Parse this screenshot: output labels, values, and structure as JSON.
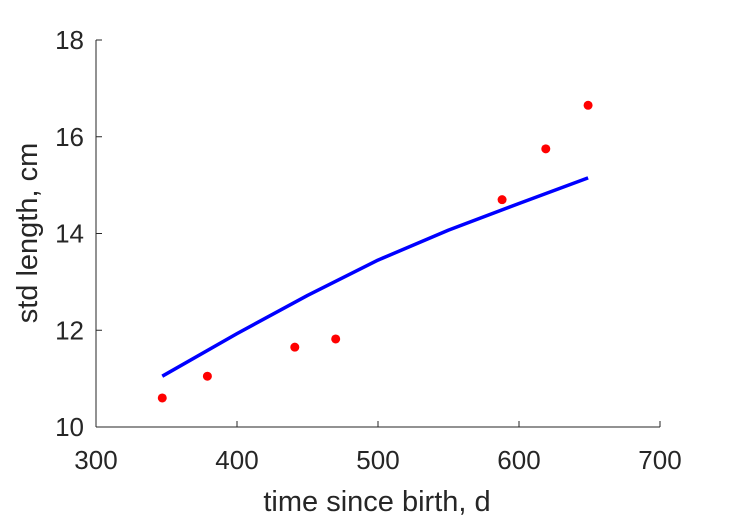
{
  "chart_data": {
    "type": "scatter",
    "title": "",
    "xlabel": "time since birth, d",
    "ylabel": "std length, cm",
    "xlim": [
      300,
      700
    ],
    "ylim": [
      10,
      18
    ],
    "xticks": [
      300,
      400,
      500,
      600,
      700
    ],
    "yticks": [
      10,
      12,
      14,
      16,
      18
    ],
    "grid": false,
    "series": [
      {
        "kind": "scatter",
        "color": "#ff0000",
        "points": [
          {
            "x": 347,
            "y": 10.6
          },
          {
            "x": 379,
            "y": 11.05
          },
          {
            "x": 441,
            "y": 11.65
          },
          {
            "x": 470,
            "y": 11.82
          },
          {
            "x": 588,
            "y": 14.7
          },
          {
            "x": 619,
            "y": 15.75
          },
          {
            "x": 649,
            "y": 16.65
          }
        ]
      },
      {
        "kind": "line",
        "color": "#0000ff",
        "points": [
          {
            "x": 347,
            "y": 11.05
          },
          {
            "x": 400,
            "y": 11.93
          },
          {
            "x": 450,
            "y": 12.72
          },
          {
            "x": 500,
            "y": 13.45
          },
          {
            "x": 550,
            "y": 14.07
          },
          {
            "x": 600,
            "y": 14.62
          },
          {
            "x": 649,
            "y": 15.15
          }
        ]
      }
    ]
  }
}
